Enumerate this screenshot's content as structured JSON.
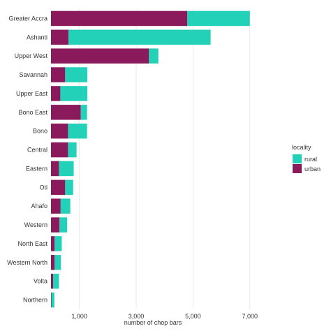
{
  "chart_data": {
    "type": "bar",
    "orientation": "horizontal",
    "stacked": true,
    "xlabel": "number of chop bars",
    "ylabel": "",
    "xlim": [
      0,
      7400
    ],
    "xticks": [
      1000,
      3000,
      5000,
      7000
    ],
    "xtick_labels": [
      "1,000",
      "3,000",
      "5,000",
      "7,000"
    ],
    "grid": "vertical",
    "legend": {
      "title": "locality",
      "position": "right"
    },
    "categories": [
      "Greater Accra",
      "Ashanti",
      "Upper West",
      "Savannah",
      "Upper East",
      "Bono East",
      "Bono",
      "Central",
      "Eastern",
      "Oti",
      "Ahafo",
      "Western",
      "North East",
      "Western North",
      "Volta",
      "Northern"
    ],
    "series": [
      {
        "name": "urban",
        "color": "#8a1a5c",
        "values": [
          4800,
          620,
          3450,
          500,
          330,
          1050,
          600,
          600,
          280,
          500,
          340,
          300,
          130,
          130,
          80,
          20
        ]
      },
      {
        "name": "rural",
        "color": "#22d1b7",
        "values": [
          2200,
          5000,
          330,
          780,
          950,
          220,
          670,
          300,
          520,
          280,
          340,
          270,
          250,
          220,
          200,
          100
        ]
      }
    ]
  }
}
